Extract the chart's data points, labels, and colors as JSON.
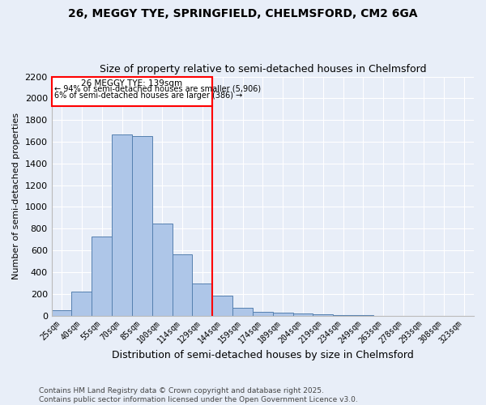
{
  "title1": "26, MEGGY TYE, SPRINGFIELD, CHELMSFORD, CM2 6GA",
  "title2": "Size of property relative to semi-detached houses in Chelmsford",
  "xlabel": "Distribution of semi-detached houses by size in Chelmsford",
  "ylabel": "Number of semi-detached properties",
  "categories": [
    "25sqm",
    "40sqm",
    "55sqm",
    "70sqm",
    "85sqm",
    "100sqm",
    "114sqm",
    "129sqm",
    "144sqm",
    "159sqm",
    "174sqm",
    "189sqm",
    "204sqm",
    "219sqm",
    "234sqm",
    "249sqm",
    "263sqm",
    "278sqm",
    "293sqm",
    "308sqm",
    "323sqm"
  ],
  "bar_heights": [
    50,
    220,
    730,
    1670,
    1650,
    845,
    565,
    295,
    185,
    70,
    35,
    25,
    20,
    15,
    5,
    3,
    0,
    0,
    0,
    0,
    0
  ],
  "bar_color": "#aec6e8",
  "bar_edge_color": "#5580b0",
  "background_color": "#e8eef8",
  "grid_color": "#ffffff",
  "vline_label": "26 MEGGY TYE: 139sqm",
  "annotation_line1": "← 94% of semi-detached houses are smaller (5,906)",
  "annotation_line2": "6% of semi-detached houses are larger (386) →",
  "footer1": "Contains HM Land Registry data © Crown copyright and database right 2025.",
  "footer2": "Contains public sector information licensed under the Open Government Licence v3.0.",
  "ylim": [
    0,
    2200
  ],
  "yticks": [
    0,
    200,
    400,
    600,
    800,
    1000,
    1200,
    1400,
    1600,
    1800,
    2000,
    2200
  ]
}
